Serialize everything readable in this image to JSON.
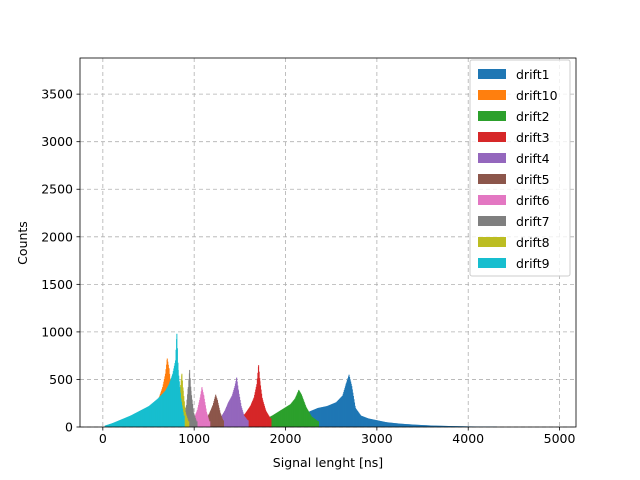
{
  "chart_data": {
    "type": "histogram",
    "xlabel": "Signal lenght [ns]",
    "ylabel": "Counts",
    "xlim": [
      -250,
      5180
    ],
    "ylim": [
      0,
      3880
    ],
    "xticks": [
      0,
      1000,
      2000,
      3000,
      4000,
      5000
    ],
    "yticks": [
      0,
      500,
      1000,
      1500,
      2000,
      2500,
      3000,
      3500
    ],
    "grid": true,
    "legend_position": "top-right",
    "series": [
      {
        "name": "drift1",
        "color": "#1f77b4",
        "bins": [
          [
            2150,
            120
          ],
          [
            2250,
            160
          ],
          [
            2350,
            200
          ],
          [
            2450,
            220
          ],
          [
            2550,
            260
          ],
          [
            2620,
            330
          ],
          [
            2660,
            460
          ],
          [
            2690,
            550
          ],
          [
            2720,
            430
          ],
          [
            2760,
            200
          ],
          [
            2820,
            120
          ],
          [
            2900,
            90
          ],
          [
            3000,
            70
          ],
          [
            3100,
            50
          ],
          [
            3250,
            35
          ],
          [
            3400,
            25
          ],
          [
            3600,
            15
          ],
          [
            3800,
            10
          ],
          [
            4000,
            6
          ],
          [
            4300,
            3
          ]
        ]
      },
      {
        "name": "drift10",
        "color": "#ff7f0e",
        "bins": [
          [
            100,
            20
          ],
          [
            200,
            60
          ],
          [
            300,
            110
          ],
          [
            400,
            150
          ],
          [
            500,
            200
          ],
          [
            600,
            280
          ],
          [
            650,
            420
          ],
          [
            680,
            560
          ],
          [
            700,
            720
          ],
          [
            720,
            610
          ],
          [
            750,
            350
          ],
          [
            790,
            150
          ]
        ]
      },
      {
        "name": "drift2",
        "color": "#2ca02c",
        "bins": [
          [
            1750,
            70
          ],
          [
            1850,
            120
          ],
          [
            1950,
            180
          ],
          [
            2050,
            240
          ],
          [
            2100,
            300
          ],
          [
            2140,
            390
          ],
          [
            2170,
            340
          ],
          [
            2220,
            210
          ],
          [
            2280,
            110
          ],
          [
            2350,
            60
          ]
        ]
      },
      {
        "name": "drift3",
        "color": "#d62728",
        "bins": [
          [
            1500,
            80
          ],
          [
            1560,
            150
          ],
          [
            1610,
            220
          ],
          [
            1650,
            310
          ],
          [
            1680,
            450
          ],
          [
            1700,
            650
          ],
          [
            1715,
            480
          ],
          [
            1740,
            300
          ],
          [
            1780,
            170
          ],
          [
            1830,
            90
          ]
        ]
      },
      {
        "name": "drift4",
        "color": "#9467bd",
        "bins": [
          [
            1280,
            90
          ],
          [
            1330,
            170
          ],
          [
            1370,
            260
          ],
          [
            1410,
            330
          ],
          [
            1440,
            430
          ],
          [
            1460,
            520
          ],
          [
            1480,
            380
          ],
          [
            1510,
            220
          ],
          [
            1540,
            120
          ],
          [
            1580,
            70
          ]
        ]
      },
      {
        "name": "drift5",
        "color": "#8c564b",
        "bins": [
          [
            1120,
            80
          ],
          [
            1160,
            140
          ],
          [
            1200,
            230
          ],
          [
            1230,
            340
          ],
          [
            1250,
            280
          ],
          [
            1280,
            150
          ],
          [
            1310,
            70
          ]
        ]
      },
      {
        "name": "drift6",
        "color": "#e377c2",
        "bins": [
          [
            980,
            60
          ],
          [
            1030,
            180
          ],
          [
            1060,
            310
          ],
          [
            1080,
            420
          ],
          [
            1100,
            330
          ],
          [
            1130,
            160
          ],
          [
            1160,
            60
          ]
        ]
      },
      {
        "name": "drift7",
        "color": "#7f7f7f",
        "bins": [
          [
            880,
            90
          ],
          [
            910,
            230
          ],
          [
            930,
            420
          ],
          [
            945,
            600
          ],
          [
            960,
            380
          ],
          [
            990,
            150
          ],
          [
            1020,
            60
          ]
        ]
      },
      {
        "name": "drift8",
        "color": "#bcbd22",
        "bins": [
          [
            790,
            100
          ],
          [
            820,
            250
          ],
          [
            840,
            390
          ],
          [
            860,
            560
          ],
          [
            875,
            380
          ],
          [
            900,
            150
          ],
          [
            930,
            60
          ]
        ]
      },
      {
        "name": "drift9",
        "color": "#17becf",
        "bins": [
          [
            20,
            15
          ],
          [
            100,
            40
          ],
          [
            200,
            80
          ],
          [
            300,
            120
          ],
          [
            400,
            170
          ],
          [
            500,
            220
          ],
          [
            600,
            300
          ],
          [
            680,
            380
          ],
          [
            720,
            450
          ],
          [
            760,
            560
          ],
          [
            790,
            700
          ],
          [
            805,
            980
          ],
          [
            820,
            600
          ],
          [
            850,
            300
          ],
          [
            880,
            120
          ]
        ]
      }
    ]
  }
}
